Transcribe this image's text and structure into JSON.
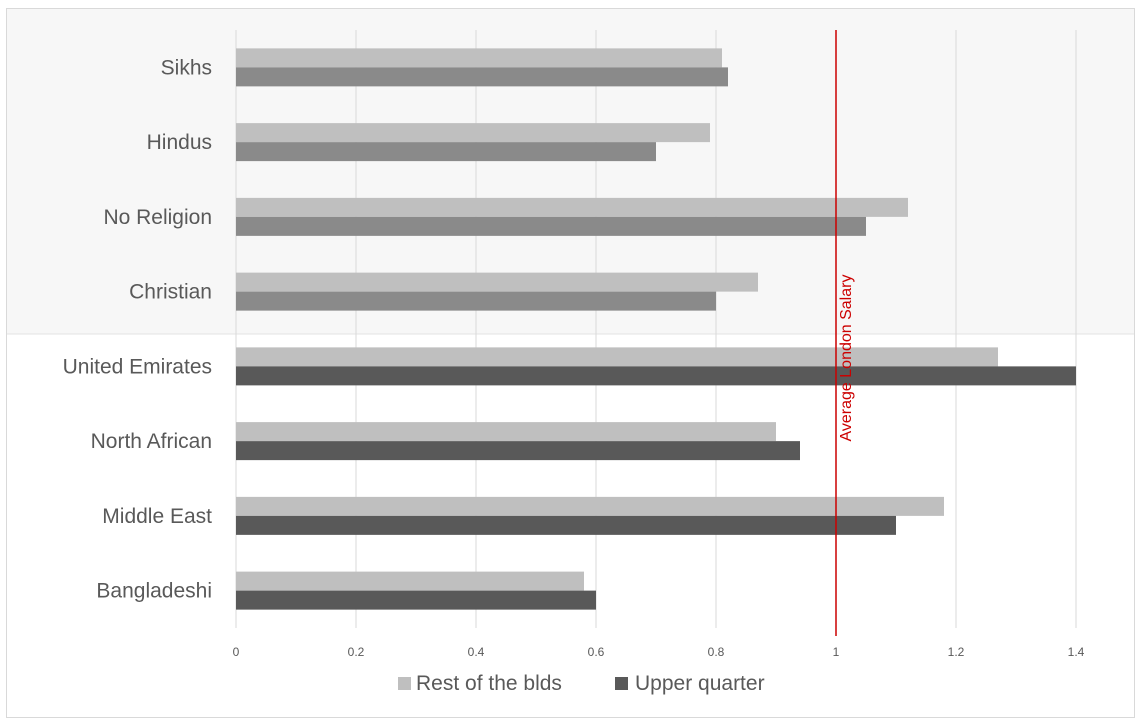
{
  "chart_data": {
    "type": "bar",
    "orientation": "horizontal",
    "categories": [
      "Sikhs",
      "Hindus",
      "No Religion",
      "Christian",
      "United Emirates",
      "North African",
      "Middle East",
      "Bangladeshi"
    ],
    "series": [
      {
        "name": "Rest of the blds",
        "values": [
          0.81,
          0.79,
          1.12,
          0.87,
          1.27,
          0.9,
          1.18,
          0.58
        ]
      },
      {
        "name": "Upper quarter",
        "values": [
          0.82,
          0.7,
          1.05,
          0.8,
          1.4,
          0.94,
          1.1,
          0.6
        ]
      }
    ],
    "xlim": [
      0,
      1.4
    ],
    "xticks": [
      "0",
      "0.2",
      "0.4",
      "0.6",
      "0.8",
      "1",
      "1.2",
      "1.4"
    ],
    "grid": true,
    "legend_position": "bottom",
    "reference_line": {
      "value": 1,
      "label": "Average London Salary",
      "color": "#cc0000"
    },
    "colors": {
      "rest": "#bfbfbf",
      "upper_religion": "#8a8a8a",
      "upper_origin": "#595959",
      "religion_band": "#f7f7f7"
    }
  }
}
